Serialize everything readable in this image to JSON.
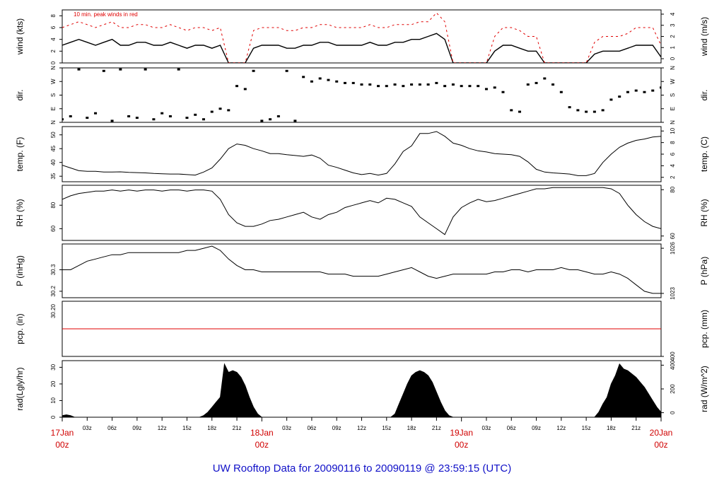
{
  "title": "UW Rooftop Data for 20090116  to  20090119 @ 23:59:15  (UTC)",
  "colors": {
    "data": "#000000",
    "peak": "#e00000",
    "date_label": "#d00000",
    "title": "#1010c8"
  },
  "time_axis": {
    "range_hours": [
      0,
      72
    ],
    "day_labels": [
      {
        "hour": 0,
        "day": "17Jan",
        "time": "00z"
      },
      {
        "hour": 24,
        "day": "18Jan",
        "time": "00z"
      },
      {
        "hour": 48,
        "day": "19Jan",
        "time": "00z"
      },
      {
        "hour": 72,
        "day": "20Jan",
        "time": "00z"
      }
    ],
    "hour_ticks": [
      {
        "hour": 3,
        "label": "03z"
      },
      {
        "hour": 6,
        "label": "06z"
      },
      {
        "hour": 9,
        "label": "09z"
      },
      {
        "hour": 12,
        "label": "12z"
      },
      {
        "hour": 15,
        "label": "15z"
      },
      {
        "hour": 18,
        "label": "18z"
      },
      {
        "hour": 21,
        "label": "21z"
      },
      {
        "hour": 27,
        "label": "03z"
      },
      {
        "hour": 30,
        "label": "06z"
      },
      {
        "hour": 33,
        "label": "09z"
      },
      {
        "hour": 36,
        "label": "12z"
      },
      {
        "hour": 39,
        "label": "15z"
      },
      {
        "hour": 42,
        "label": "18z"
      },
      {
        "hour": 45,
        "label": "21z"
      },
      {
        "hour": 51,
        "label": "03z"
      },
      {
        "hour": 54,
        "label": "06z"
      },
      {
        "hour": 57,
        "label": "09z"
      },
      {
        "hour": 60,
        "label": "12z"
      },
      {
        "hour": 63,
        "label": "15z"
      },
      {
        "hour": 66,
        "label": "18z"
      },
      {
        "hour": 69,
        "label": "21z"
      }
    ]
  },
  "chart_data": [
    {
      "id": "wind",
      "type": "line",
      "ylabel_left": "wind (kts)",
      "ylabel_right": "wind (m/s)",
      "annotation": "10 min. peak winds in red",
      "ylim": [
        0,
        9
      ],
      "left_ticks": [
        0,
        2,
        4,
        6,
        8
      ],
      "right_ticks": [
        0,
        1,
        2,
        3,
        4
      ],
      "x": [
        0,
        1,
        2,
        3,
        4,
        5,
        6,
        7,
        8,
        9,
        10,
        11,
        12,
        13,
        14,
        15,
        16,
        17,
        18,
        19,
        20,
        21,
        22,
        23,
        24,
        25,
        26,
        27,
        28,
        29,
        30,
        31,
        32,
        33,
        34,
        35,
        36,
        37,
        38,
        39,
        40,
        41,
        42,
        43,
        44,
        45,
        46,
        47,
        48,
        49,
        50,
        51,
        52,
        53,
        54,
        55,
        56,
        57,
        58,
        59,
        60,
        61,
        62,
        63,
        64,
        65,
        66,
        67,
        68,
        69,
        70,
        71,
        72
      ],
      "series": [
        {
          "role": "mean",
          "values": [
            3,
            3.5,
            4,
            3.5,
            3,
            3.5,
            4,
            3,
            3,
            3.5,
            3.5,
            3,
            3,
            3.5,
            3,
            2.5,
            3,
            3,
            2.5,
            3,
            0,
            0,
            0,
            2.5,
            3,
            3,
            3,
            2.5,
            2.5,
            3,
            3,
            3.5,
            3.5,
            3,
            3,
            3,
            3,
            3.5,
            3,
            3,
            3.5,
            3.5,
            4,
            4,
            4.5,
            5,
            4,
            0,
            0,
            0,
            0,
            0,
            2,
            3,
            3,
            2.5,
            2,
            2,
            0,
            0,
            0,
            0,
            0,
            0,
            1.5,
            2,
            2,
            2,
            2.5,
            3,
            3,
            3,
            1
          ]
        },
        {
          "role": "peak",
          "values": [
            6,
            6.5,
            7,
            6.5,
            6,
            6.5,
            7,
            6,
            6,
            6.5,
            6.5,
            6,
            6,
            6.5,
            6,
            5.5,
            6,
            6,
            5.5,
            6,
            0,
            0,
            0,
            5.5,
            6,
            6,
            6,
            5.5,
            5.5,
            6,
            6,
            6.5,
            6.5,
            6,
            6,
            6,
            6,
            6.5,
            6,
            6,
            6.5,
            6.5,
            6.5,
            7,
            7,
            8.5,
            7,
            0,
            0,
            0,
            0,
            0,
            4.5,
            6,
            6,
            5.5,
            4.5,
            4.5,
            0,
            0,
            0,
            0,
            0,
            0,
            3.5,
            4.5,
            4.5,
            4.5,
            5,
            6,
            6,
            6,
            3
          ]
        }
      ]
    },
    {
      "id": "dir",
      "type": "scatter",
      "ylabel_left": "dir.",
      "ylabel_right": "dir.",
      "ylim": [
        0,
        360
      ],
      "ticks": [
        {
          "value": 0,
          "label": "N"
        },
        {
          "value": 90,
          "label": "E"
        },
        {
          "value": 180,
          "label": "S"
        },
        {
          "value": 270,
          "label": "W"
        },
        {
          "value": 360,
          "label": "N"
        }
      ],
      "x": [
        0,
        1,
        2,
        3,
        4,
        5,
        6,
        7,
        8,
        9,
        10,
        11,
        12,
        13,
        14,
        15,
        16,
        17,
        18,
        19,
        20,
        21,
        22,
        23,
        24,
        25,
        26,
        27,
        28,
        29,
        30,
        31,
        32,
        33,
        34,
        35,
        36,
        37,
        38,
        39,
        40,
        41,
        42,
        43,
        44,
        45,
        46,
        47,
        48,
        49,
        50,
        51,
        52,
        53,
        54,
        55,
        56,
        57,
        58,
        59,
        60,
        61,
        62,
        63,
        64,
        65,
        66,
        67,
        68,
        69,
        70,
        71,
        72
      ],
      "values": [
        20,
        40,
        350,
        30,
        60,
        340,
        10,
        350,
        40,
        30,
        350,
        20,
        60,
        40,
        350,
        30,
        50,
        20,
        70,
        90,
        80,
        240,
        220,
        340,
        10,
        20,
        40,
        340,
        10,
        300,
        270,
        290,
        280,
        270,
        260,
        260,
        250,
        250,
        240,
        240,
        250,
        240,
        250,
        250,
        250,
        260,
        240,
        250,
        240,
        240,
        240,
        220,
        230,
        200,
        80,
        70,
        250,
        260,
        290,
        250,
        200,
        100,
        80,
        70,
        70,
        80,
        150,
        170,
        200,
        210,
        200,
        210,
        230
      ]
    },
    {
      "id": "temp",
      "type": "line",
      "ylabel_left": "temp. (F)",
      "ylabel_right": "temp. (C)",
      "ylim": [
        33,
        53
      ],
      "left_ticks": [
        35,
        40,
        45,
        50
      ],
      "right_ticks": [
        2,
        4,
        6,
        8,
        10
      ],
      "x": [
        0,
        1,
        2,
        3,
        4,
        5,
        6,
        7,
        8,
        9,
        10,
        11,
        12,
        13,
        14,
        15,
        16,
        17,
        18,
        19,
        20,
        21,
        22,
        23,
        24,
        25,
        26,
        27,
        28,
        29,
        30,
        31,
        32,
        33,
        34,
        35,
        36,
        37,
        38,
        39,
        40,
        41,
        42,
        43,
        44,
        45,
        46,
        47,
        48,
        49,
        50,
        51,
        52,
        53,
        54,
        55,
        56,
        57,
        58,
        59,
        60,
        61,
        62,
        63,
        64,
        65,
        66,
        67,
        68,
        69,
        70,
        71,
        72
      ],
      "values": [
        39,
        38,
        37,
        36.8,
        36.8,
        36.5,
        36.5,
        36.6,
        36.4,
        36.3,
        36.2,
        36,
        35.9,
        35.8,
        35.8,
        35.6,
        35.4,
        36.5,
        38,
        41.2,
        45,
        46.7,
        46.2,
        45,
        44.2,
        43.2,
        43.2,
        42.8,
        42.5,
        42.2,
        42.7,
        41.5,
        39,
        38.2,
        37.2,
        36.2,
        35.6,
        36,
        35.4,
        36,
        39.5,
        44,
        46,
        50.5,
        50.5,
        51.2,
        49.5,
        47,
        46.2,
        45,
        44.2,
        43.8,
        43.2,
        43,
        42.8,
        42.2,
        40.2,
        37.5,
        36.5,
        36.2,
        36,
        35.8,
        35.2,
        35.2,
        36,
        40,
        43,
        45.5,
        47,
        48,
        48.5,
        49.2,
        49.5
      ]
    },
    {
      "id": "rh",
      "type": "line",
      "ylabel_left": "RH (%)",
      "ylabel_right": "RH (%)",
      "ylim": [
        50,
        97
      ],
      "left_ticks": [
        60,
        80
      ],
      "right_ticks": [
        60,
        80
      ],
      "x": [
        0,
        1,
        2,
        3,
        4,
        5,
        6,
        7,
        8,
        9,
        10,
        11,
        12,
        13,
        14,
        15,
        16,
        17,
        18,
        19,
        20,
        21,
        22,
        23,
        24,
        25,
        26,
        27,
        28,
        29,
        30,
        31,
        32,
        33,
        34,
        35,
        36,
        37,
        38,
        39,
        40,
        41,
        42,
        43,
        44,
        45,
        46,
        47,
        48,
        49,
        50,
        51,
        52,
        53,
        54,
        55,
        56,
        57,
        58,
        59,
        60,
        61,
        62,
        63,
        64,
        65,
        66,
        67,
        68,
        69,
        70,
        71,
        72
      ],
      "values": [
        85,
        88,
        90,
        91,
        92,
        92,
        93,
        92,
        93,
        92,
        93,
        93,
        92,
        93,
        93,
        92,
        93,
        93,
        92,
        85,
        72,
        65,
        62,
        62,
        64,
        67,
        68,
        70,
        72,
        74,
        70,
        68,
        72,
        74,
        78,
        80,
        82,
        84,
        82,
        86,
        85,
        82,
        79,
        70,
        65,
        60,
        55,
        70,
        78,
        82,
        85,
        83,
        84,
        86,
        88,
        90,
        92,
        94,
        94,
        95,
        95,
        95,
        95,
        95,
        95,
        95,
        94,
        90,
        80,
        72,
        66,
        62,
        60
      ]
    },
    {
      "id": "pressure",
      "type": "line",
      "ylabel_left": "P (inHg)",
      "ylabel_right": "P (hPa)",
      "ylim": [
        30.17,
        30.42
      ],
      "left_ticks": [
        30.2,
        30.3
      ],
      "right_ticks": [
        1023,
        1026
      ],
      "x": [
        0,
        1,
        2,
        3,
        4,
        5,
        6,
        7,
        8,
        9,
        10,
        11,
        12,
        13,
        14,
        15,
        16,
        17,
        18,
        19,
        20,
        21,
        22,
        23,
        24,
        25,
        26,
        27,
        28,
        29,
        30,
        31,
        32,
        33,
        34,
        35,
        36,
        37,
        38,
        39,
        40,
        41,
        42,
        43,
        44,
        45,
        46,
        47,
        48,
        49,
        50,
        51,
        52,
        53,
        54,
        55,
        56,
        57,
        58,
        59,
        60,
        61,
        62,
        63,
        64,
        65,
        66,
        67,
        68,
        69,
        70,
        71,
        72
      ],
      "values": [
        30.3,
        30.3,
        30.32,
        30.34,
        30.35,
        30.36,
        30.37,
        30.37,
        30.38,
        30.38,
        30.38,
        30.38,
        30.38,
        30.38,
        30.38,
        30.39,
        30.39,
        30.4,
        30.41,
        30.39,
        30.35,
        30.32,
        30.3,
        30.3,
        30.29,
        30.29,
        30.29,
        30.29,
        30.29,
        30.29,
        30.29,
        30.29,
        30.28,
        30.28,
        30.28,
        30.27,
        30.27,
        30.27,
        30.27,
        30.28,
        30.29,
        30.3,
        30.31,
        30.29,
        30.27,
        30.26,
        30.27,
        30.28,
        30.28,
        30.28,
        30.28,
        30.28,
        30.29,
        30.29,
        30.3,
        30.3,
        30.29,
        30.3,
        30.3,
        30.3,
        30.31,
        30.3,
        30.3,
        30.29,
        30.28,
        30.28,
        30.29,
        30.28,
        30.26,
        30.23,
        30.2,
        30.19,
        30.19
      ]
    },
    {
      "id": "precip",
      "type": "line",
      "ylabel_left": "pcp. (in)",
      "ylabel_right": "pcp. (mm)",
      "ylim": [
        0,
        30
      ],
      "left_ticks_rotated": [
        "30.20"
      ],
      "right_ticks": [
        400
      ],
      "x": [
        0,
        72
      ],
      "values": [
        15,
        15
      ]
    },
    {
      "id": "radiation",
      "type": "area",
      "ylabel_left": "rad(Lgly/hr)",
      "ylabel_right": "rad (W/m^2)",
      "ylim": [
        0,
        34
      ],
      "left_ticks": [
        0,
        10,
        20,
        30
      ],
      "right_ticks": [
        0,
        200,
        400
      ],
      "x": [
        0,
        0.5,
        1,
        1.5,
        16.5,
        17,
        17.5,
        18,
        18.5,
        19,
        19.5,
        20,
        20.5,
        21,
        21.5,
        22,
        22.5,
        23,
        23.5,
        24,
        39.5,
        40,
        40.5,
        41,
        41.5,
        42,
        42.5,
        43,
        43.5,
        44,
        44.5,
        45,
        45.5,
        46,
        46.5,
        47,
        47.5,
        64,
        64.5,
        65,
        65.5,
        66,
        66.5,
        67,
        67.5,
        68,
        68.5,
        69,
        69.5,
        70,
        70.5,
        71,
        71.5,
        72
      ],
      "values": [
        1,
        1.5,
        1,
        0,
        0,
        1,
        3,
        6,
        9,
        12,
        32,
        27,
        28,
        27,
        24,
        19,
        12,
        6,
        2,
        0,
        0,
        2,
        8,
        14,
        20,
        25,
        27,
        28,
        27,
        25,
        21,
        15,
        9,
        4,
        1,
        0,
        0,
        0,
        3,
        8,
        12,
        20,
        25,
        32,
        29,
        28,
        26,
        24,
        21,
        18,
        14,
        10,
        6,
        3
      ]
    }
  ]
}
